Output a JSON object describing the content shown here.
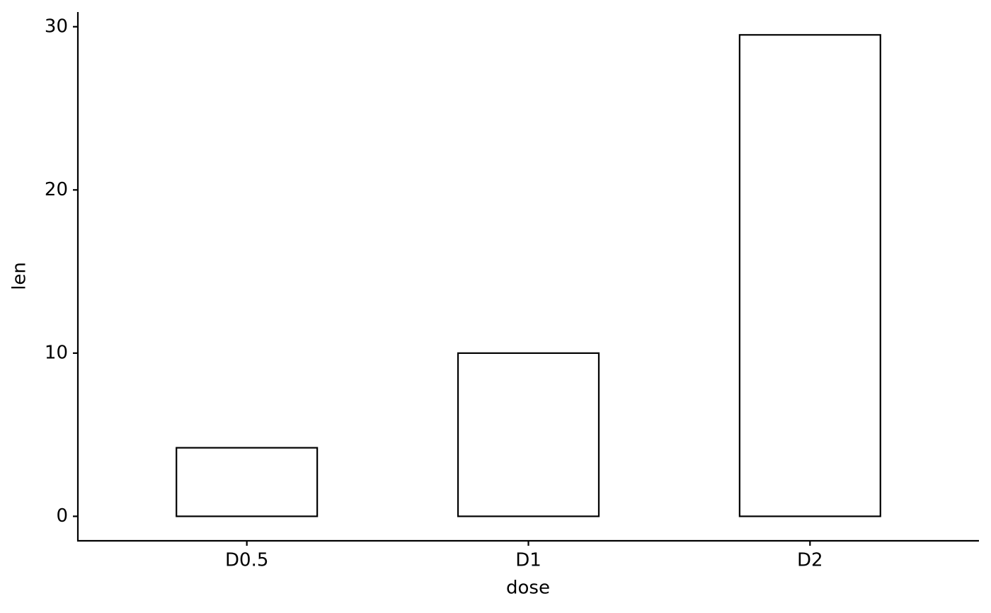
{
  "chart_data": {
    "type": "bar",
    "x_label": "dose",
    "y_label": "len",
    "categories": [
      "D0.5",
      "D1",
      "D2"
    ],
    "values": [
      4.2,
      10,
      29.5
    ],
    "color": "#000000",
    "fill": "#ffffff",
    "ylim": [
      -1.5,
      30.9
    ],
    "yticks": [
      0,
      10,
      20,
      30
    ],
    "grid": false
  }
}
